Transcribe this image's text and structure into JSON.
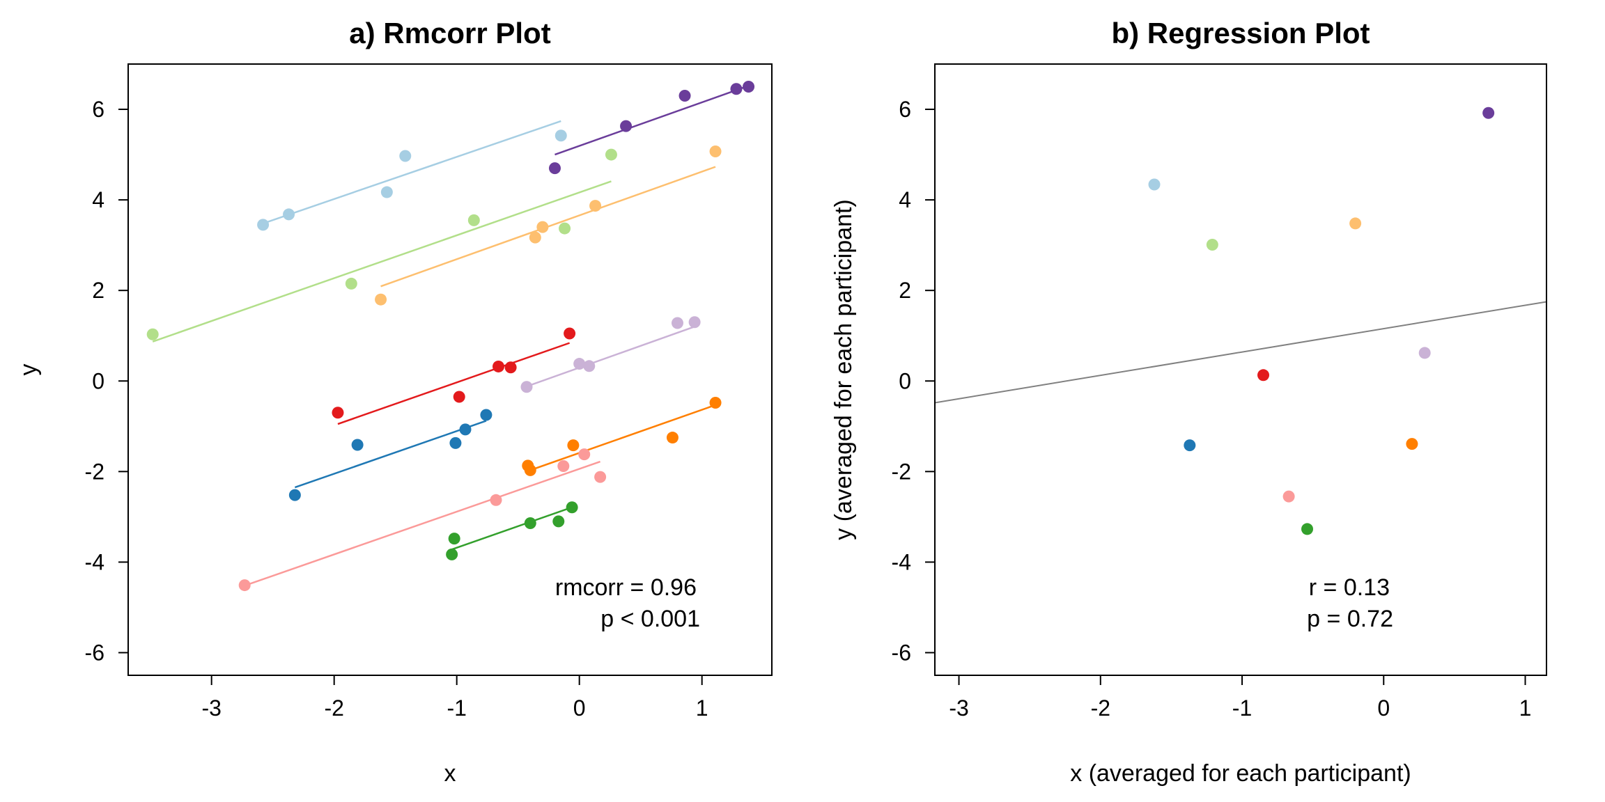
{
  "chart_data": [
    {
      "type": "scatter",
      "title": "a) Rmcorr Plot",
      "xlabel": "x",
      "ylabel": "y",
      "xlim": [
        -3.68,
        1.57
      ],
      "ylim": [
        -6.5,
        7.0
      ],
      "xticks": [
        -3,
        -2,
        -1,
        0,
        1
      ],
      "yticks": [
        -6,
        -4,
        -2,
        0,
        2,
        4,
        6
      ],
      "grid": false,
      "annotations": [
        "rmcorr = 0.96",
        "p < 0.001"
      ],
      "series": [
        {
          "color": "#A6CEE3",
          "points": [
            [
              -2.58,
              3.45
            ],
            [
              -2.37,
              3.68
            ],
            [
              -1.57,
              4.17
            ],
            [
              -1.42,
              4.97
            ],
            [
              -0.15,
              5.42
            ]
          ],
          "fit": [
            [
              -2.58,
              3.48
            ],
            [
              -0.15,
              5.74
            ]
          ]
        },
        {
          "color": "#1F78B4",
          "points": [
            [
              -2.32,
              -2.52
            ],
            [
              -1.81,
              -1.41
            ],
            [
              -1.01,
              -1.37
            ],
            [
              -0.93,
              -1.07
            ],
            [
              -0.76,
              -0.75
            ]
          ],
          "fit": [
            [
              -2.32,
              -2.35
            ],
            [
              -0.76,
              -0.88
            ]
          ]
        },
        {
          "color": "#B2DF8A",
          "points": [
            [
              -3.48,
              1.03
            ],
            [
              -1.86,
              2.15
            ],
            [
              -0.86,
              3.55
            ],
            [
              -0.12,
              3.37
            ],
            [
              0.26,
              5.0
            ]
          ],
          "fit": [
            [
              -3.48,
              0.87
            ],
            [
              0.26,
              4.41
            ]
          ]
        },
        {
          "color": "#33A02C",
          "points": [
            [
              -1.04,
              -3.83
            ],
            [
              -1.02,
              -3.48
            ],
            [
              -0.4,
              -3.14
            ],
            [
              -0.17,
              -3.1
            ],
            [
              -0.06,
              -2.79
            ]
          ],
          "fit": [
            [
              -1.04,
              -3.72
            ],
            [
              -0.06,
              -2.79
            ]
          ]
        },
        {
          "color": "#FB9A99",
          "points": [
            [
              -2.73,
              -4.51
            ],
            [
              -0.68,
              -2.63
            ],
            [
              -0.13,
              -1.88
            ],
            [
              0.04,
              -1.62
            ],
            [
              0.17,
              -2.12
            ]
          ],
          "fit": [
            [
              -2.73,
              -4.52
            ],
            [
              0.17,
              -1.78
            ]
          ]
        },
        {
          "color": "#E31A1C",
          "points": [
            [
              -1.97,
              -0.7
            ],
            [
              -0.98,
              -0.35
            ],
            [
              -0.66,
              0.32
            ],
            [
              -0.56,
              0.3
            ],
            [
              -0.08,
              1.05
            ]
          ],
          "fit": [
            [
              -1.97,
              -0.95
            ],
            [
              -0.08,
              0.84
            ]
          ]
        },
        {
          "color": "#FDBF6F",
          "points": [
            [
              -1.62,
              1.8
            ],
            [
              -0.36,
              3.17
            ],
            [
              -0.3,
              3.4
            ],
            [
              0.13,
              3.87
            ],
            [
              1.11,
              5.07
            ]
          ],
          "fit": [
            [
              -1.62,
              2.09
            ],
            [
              1.11,
              4.73
            ]
          ]
        },
        {
          "color": "#FF7F00",
          "points": [
            [
              -0.42,
              -1.87
            ],
            [
              -0.4,
              -1.97
            ],
            [
              -0.05,
              -1.42
            ],
            [
              0.76,
              -1.25
            ],
            [
              1.11,
              -0.48
            ]
          ],
          "fit": [
            [
              -0.4,
              -1.97
            ],
            [
              1.11,
              -0.53
            ]
          ]
        },
        {
          "color": "#CAB2D6",
          "points": [
            [
              -0.43,
              -0.13
            ],
            [
              0.0,
              0.38
            ],
            [
              0.08,
              0.33
            ],
            [
              0.8,
              1.28
            ],
            [
              0.94,
              1.3
            ]
          ],
          "fit": [
            [
              -0.43,
              -0.12
            ],
            [
              0.94,
              1.2
            ]
          ]
        },
        {
          "color": "#6A3D9A",
          "points": [
            [
              -0.2,
              4.7
            ],
            [
              0.38,
              5.63
            ],
            [
              0.86,
              6.3
            ],
            [
              1.28,
              6.45
            ],
            [
              1.38,
              6.5
            ]
          ],
          "fit": [
            [
              -0.2,
              5.0
            ],
            [
              1.38,
              6.52
            ]
          ]
        }
      ]
    },
    {
      "type": "scatter",
      "title": "b) Regression Plot",
      "xlabel": "x (averaged for each participant)",
      "ylabel": "y (averaged for each participant)",
      "xlim": [
        -3.17,
        1.15
      ],
      "ylim": [
        -6.5,
        7.0
      ],
      "xticks": [
        -3,
        -2,
        -1,
        0,
        1
      ],
      "yticks": [
        -6,
        -4,
        -2,
        0,
        2,
        4,
        6
      ],
      "grid": false,
      "annotations": [
        "r = 0.13",
        "p = 0.72"
      ],
      "regression_line": {
        "color": "#808080",
        "points": [
          [
            -3.17,
            -0.48
          ],
          [
            1.15,
            1.75
          ]
        ]
      },
      "series": [
        {
          "color": "#A6CEE3",
          "points": [
            [
              -1.62,
              4.34
            ]
          ]
        },
        {
          "color": "#1F78B4",
          "points": [
            [
              -1.37,
              -1.42
            ]
          ]
        },
        {
          "color": "#B2DF8A",
          "points": [
            [
              -1.21,
              3.01
            ]
          ]
        },
        {
          "color": "#33A02C",
          "points": [
            [
              -0.54,
              -3.27
            ]
          ]
        },
        {
          "color": "#FB9A99",
          "points": [
            [
              -0.67,
              -2.55
            ]
          ]
        },
        {
          "color": "#E31A1C",
          "points": [
            [
              -0.85,
              0.13
            ]
          ]
        },
        {
          "color": "#FDBF6F",
          "points": [
            [
              -0.2,
              3.48
            ]
          ]
        },
        {
          "color": "#FF7F00",
          "points": [
            [
              0.2,
              -1.39
            ]
          ]
        },
        {
          "color": "#CAB2D6",
          "points": [
            [
              0.29,
              0.62
            ]
          ]
        },
        {
          "color": "#6A3D9A",
          "points": [
            [
              0.74,
              5.92
            ]
          ]
        }
      ]
    }
  ]
}
